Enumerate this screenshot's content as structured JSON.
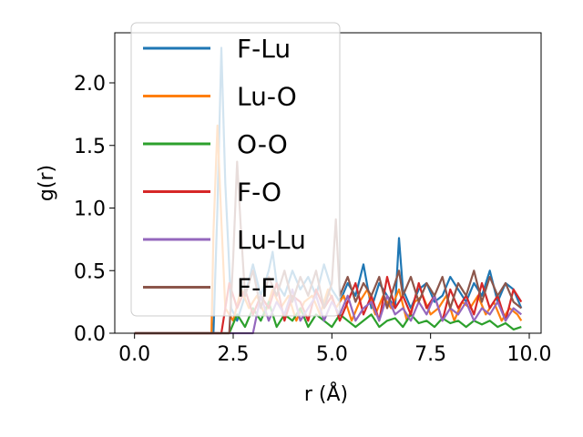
{
  "chart_data": {
    "type": "line",
    "xlabel": "r (Å)",
    "ylabel": "g(r)",
    "xlim": [
      -0.5,
      10.3
    ],
    "ylim": [
      0,
      2.4
    ],
    "xticks": [
      0.0,
      2.5,
      5.0,
      7.5,
      10.0
    ],
    "xtick_labels": [
      "0.0",
      "2.5",
      "5.0",
      "7.5",
      "10.0"
    ],
    "yticks": [
      0.0,
      0.5,
      1.0,
      1.5,
      2.0
    ],
    "ytick_labels": [
      "0.0",
      "0.5",
      "1.0",
      "1.5",
      "2.0"
    ],
    "grid": false,
    "legend_position": "upper-left",
    "series": [
      {
        "name": "F-Lu",
        "color": "#1f77b4",
        "x": [
          0.0,
          2.0,
          2.1,
          2.2,
          2.3,
          2.45,
          2.6,
          2.8,
          3.0,
          3.2,
          3.4,
          3.5,
          3.6,
          3.8,
          4.0,
          4.2,
          4.4,
          4.6,
          4.8,
          5.0,
          5.2,
          5.4,
          5.6,
          5.8,
          6.0,
          6.2,
          6.4,
          6.6,
          6.7,
          6.8,
          7.0,
          7.2,
          7.4,
          7.6,
          7.8,
          8.0,
          8.2,
          8.4,
          8.6,
          8.8,
          9.0,
          9.2,
          9.4,
          9.6,
          9.8
        ],
        "y": [
          0.0,
          0.0,
          1.0,
          2.28,
          1.2,
          0.2,
          0.1,
          0.3,
          0.55,
          0.3,
          0.5,
          0.65,
          0.4,
          0.3,
          0.5,
          0.35,
          0.45,
          0.3,
          0.55,
          0.35,
          0.25,
          0.4,
          0.3,
          0.55,
          0.2,
          0.4,
          0.3,
          0.2,
          0.76,
          0.35,
          0.2,
          0.35,
          0.4,
          0.25,
          0.3,
          0.45,
          0.35,
          0.25,
          0.4,
          0.3,
          0.5,
          0.25,
          0.4,
          0.35,
          0.2
        ]
      },
      {
        "name": "Lu-O",
        "color": "#ff7f0e",
        "x": [
          0.0,
          1.95,
          2.0,
          2.1,
          2.2,
          2.3,
          2.5,
          2.7,
          2.9,
          3.1,
          3.3,
          3.5,
          3.7,
          3.9,
          4.1,
          4.3,
          4.5,
          4.7,
          4.9,
          5.1,
          5.3,
          5.5,
          5.7,
          5.9,
          6.1,
          6.3,
          6.5,
          6.7,
          6.9,
          7.1,
          7.3,
          7.5,
          7.7,
          7.9,
          8.1,
          8.3,
          8.5,
          8.7,
          8.9,
          9.1,
          9.3,
          9.5,
          9.7,
          9.8
        ],
        "y": [
          0.0,
          0.0,
          0.8,
          1.66,
          0.9,
          0.2,
          0.1,
          0.35,
          0.2,
          0.3,
          0.15,
          0.35,
          0.2,
          0.3,
          0.1,
          0.25,
          0.3,
          0.15,
          0.35,
          0.2,
          0.3,
          0.1,
          0.25,
          0.35,
          0.15,
          0.3,
          0.2,
          0.35,
          0.1,
          0.25,
          0.3,
          0.15,
          0.2,
          0.3,
          0.1,
          0.25,
          0.2,
          0.3,
          0.15,
          0.25,
          0.1,
          0.2,
          0.15,
          0.1
        ]
      },
      {
        "name": "O-O",
        "color": "#2ca02c",
        "x": [
          0.0,
          2.4,
          2.6,
          2.8,
          3.0,
          3.2,
          3.4,
          3.6,
          3.8,
          4.0,
          4.2,
          4.4,
          4.6,
          4.8,
          5.0,
          5.2,
          5.4,
          5.6,
          5.8,
          6.0,
          6.2,
          6.4,
          6.6,
          6.8,
          7.0,
          7.2,
          7.4,
          7.6,
          7.8,
          8.0,
          8.2,
          8.4,
          8.6,
          8.8,
          9.0,
          9.2,
          9.4,
          9.6,
          9.8
        ],
        "y": [
          0.0,
          0.0,
          0.15,
          0.05,
          0.2,
          0.1,
          0.25,
          0.05,
          0.15,
          0.1,
          0.2,
          0.05,
          0.15,
          0.1,
          0.05,
          0.15,
          0.1,
          0.05,
          0.1,
          0.15,
          0.05,
          0.1,
          0.12,
          0.05,
          0.15,
          0.08,
          0.1,
          0.05,
          0.12,
          0.08,
          0.1,
          0.05,
          0.1,
          0.07,
          0.1,
          0.05,
          0.08,
          0.03,
          0.05
        ]
      },
      {
        "name": "F-O",
        "color": "#d62728",
        "x": [
          0.0,
          2.2,
          2.4,
          2.6,
          2.8,
          3.0,
          3.2,
          3.4,
          3.6,
          3.8,
          4.0,
          4.2,
          4.4,
          4.6,
          4.8,
          5.0,
          5.2,
          5.4,
          5.6,
          5.8,
          6.0,
          6.2,
          6.4,
          6.6,
          6.8,
          7.0,
          7.2,
          7.4,
          7.6,
          7.8,
          8.0,
          8.2,
          8.4,
          8.6,
          8.8,
          9.0,
          9.2,
          9.4,
          9.6,
          9.8
        ],
        "y": [
          0.0,
          0.0,
          0.4,
          0.2,
          0.35,
          0.15,
          0.3,
          0.2,
          0.4,
          0.1,
          0.3,
          0.25,
          0.1,
          0.35,
          0.2,
          0.3,
          0.1,
          0.25,
          0.4,
          0.15,
          0.3,
          0.1,
          0.45,
          0.2,
          0.3,
          0.15,
          0.4,
          0.2,
          0.3,
          0.1,
          0.35,
          0.2,
          0.3,
          0.15,
          0.4,
          0.2,
          0.3,
          0.1,
          0.35,
          0.25
        ]
      },
      {
        "name": "Lu-Lu",
        "color": "#9467bd",
        "x": [
          0.0,
          3.0,
          3.2,
          3.4,
          3.6,
          3.8,
          4.0,
          4.2,
          4.4,
          4.6,
          4.8,
          5.0,
          5.2,
          5.4,
          5.6,
          5.8,
          6.0,
          6.2,
          6.4,
          6.6,
          6.8,
          7.0,
          7.2,
          7.4,
          7.6,
          7.8,
          8.0,
          8.2,
          8.4,
          8.6,
          8.8,
          9.0,
          9.2,
          9.4,
          9.6,
          9.8
        ],
        "y": [
          0.0,
          0.0,
          0.3,
          0.1,
          0.25,
          0.15,
          0.35,
          0.1,
          0.2,
          0.3,
          0.1,
          0.25,
          0.15,
          0.3,
          0.1,
          0.2,
          0.25,
          0.1,
          0.3,
          0.15,
          0.2,
          0.1,
          0.25,
          0.15,
          0.3,
          0.1,
          0.2,
          0.15,
          0.25,
          0.1,
          0.2,
          0.15,
          0.25,
          0.1,
          0.2,
          0.15
        ]
      },
      {
        "name": "F-F",
        "color": "#8c564b",
        "x": [
          0.0,
          2.4,
          2.5,
          2.6,
          2.7,
          2.8,
          3.0,
          3.2,
          3.4,
          3.6,
          3.8,
          4.0,
          4.2,
          4.4,
          4.6,
          4.8,
          5.0,
          5.1,
          5.2,
          5.4,
          5.6,
          5.8,
          6.0,
          6.2,
          6.4,
          6.6,
          6.7,
          6.8,
          7.0,
          7.2,
          7.4,
          7.6,
          7.8,
          8.0,
          8.2,
          8.4,
          8.6,
          8.8,
          9.0,
          9.2,
          9.4,
          9.6,
          9.8
        ],
        "y": [
          0.0,
          0.0,
          0.6,
          1.37,
          0.8,
          0.3,
          0.5,
          0.2,
          0.45,
          0.3,
          0.5,
          0.25,
          0.45,
          0.3,
          0.5,
          0.2,
          0.4,
          0.91,
          0.3,
          0.45,
          0.25,
          0.4,
          0.3,
          0.45,
          0.2,
          0.4,
          0.5,
          0.3,
          0.45,
          0.25,
          0.4,
          0.3,
          0.45,
          0.2,
          0.4,
          0.3,
          0.5,
          0.25,
          0.45,
          0.3,
          0.4,
          0.25,
          0.2
        ]
      }
    ]
  }
}
